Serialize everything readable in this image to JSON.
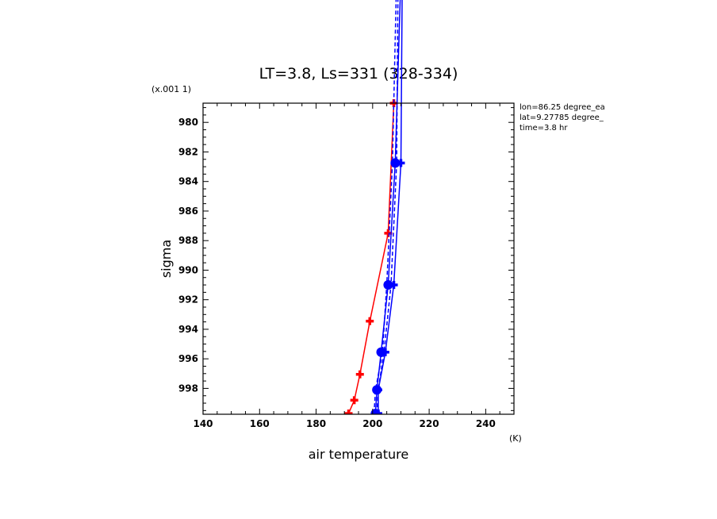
{
  "chart_data": {
    "type": "line",
    "title": "LT=3.8, Ls=331 (328-334)",
    "xlabel": "air temperature",
    "ylabel": "sigma",
    "x_units": "(K)",
    "y_scale_note": "(x.001 1)",
    "xlim": [
      140,
      250
    ],
    "ylim": [
      999.75,
      978.7
    ],
    "x_ticks": [
      140,
      160,
      180,
      200,
      220,
      240
    ],
    "y_ticks": [
      980,
      982,
      984,
      986,
      988,
      990,
      992,
      994,
      996,
      998
    ],
    "annotations": [
      "lon=86.25 degree_ea",
      "lat=9.27785 degree_",
      "time=3.8 hr"
    ],
    "grid": false,
    "series": [
      {
        "color": "#ff0000",
        "marker": "plus",
        "style": "solid",
        "points": [
          {
            "x": 191.5,
            "y": 999.7
          },
          {
            "x": 193.5,
            "y": 998.8
          },
          {
            "x": 195.5,
            "y": 997.05
          },
          {
            "x": 199.0,
            "y": 993.45
          },
          {
            "x": 205.5,
            "y": 987.5
          },
          {
            "x": 207.5,
            "y": 978.7
          }
        ]
      },
      {
        "color": "#0000ff",
        "marker": "dot",
        "style": "solid",
        "points": [
          {
            "x": 201.0,
            "y": 999.7
          },
          {
            "x": 201.5,
            "y": 998.1
          },
          {
            "x": 203.0,
            "y": 995.55
          },
          {
            "x": 205.5,
            "y": 991.0
          },
          {
            "x": 208.0,
            "y": 982.75
          },
          {
            "x": 210.0,
            "y": 970.0
          }
        ]
      },
      {
        "color": "#0000ff",
        "marker": "plus",
        "style": "solid",
        "points": [
          {
            "x": 202.0,
            "y": 999.7
          },
          {
            "x": 202.0,
            "y": 998.1
          },
          {
            "x": 204.5,
            "y": 995.55
          },
          {
            "x": 207.5,
            "y": 991.0
          },
          {
            "x": 210.0,
            "y": 982.75
          },
          {
            "x": 210.5,
            "y": 970.0
          }
        ]
      },
      {
        "color": "#0000ff",
        "marker": "none",
        "style": "dashed",
        "points": [
          {
            "x": 200.5,
            "y": 999.7
          },
          {
            "x": 201.0,
            "y": 998.1
          },
          {
            "x": 203.5,
            "y": 995.55
          },
          {
            "x": 205.0,
            "y": 991.0
          },
          {
            "x": 207.0,
            "y": 982.75
          },
          {
            "x": 208.5,
            "y": 970.0
          }
        ]
      },
      {
        "color": "#0000ff",
        "marker": "none",
        "style": "dashed",
        "points": [
          {
            "x": 201.5,
            "y": 999.7
          },
          {
            "x": 202.0,
            "y": 998.1
          },
          {
            "x": 204.0,
            "y": 995.55
          },
          {
            "x": 206.5,
            "y": 991.0
          },
          {
            "x": 208.5,
            "y": 982.75
          },
          {
            "x": 209.0,
            "y": 970.0
          }
        ]
      }
    ]
  }
}
